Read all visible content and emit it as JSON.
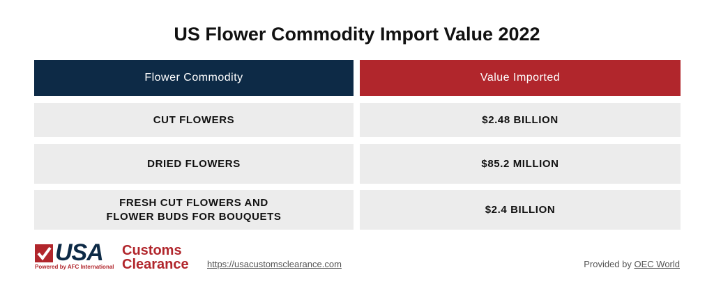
{
  "header": {
    "title": "US Flower Commodity Import Value 2022"
  },
  "table": {
    "columns": [
      "Flower Commodity",
      "Value Imported"
    ],
    "rows": [
      [
        "CUT FLOWERS",
        "$2.48 BILLION"
      ],
      [
        "DRIED FLOWERS",
        "$85.2 MILLION"
      ],
      [
        "FRESH CUT FLOWERS AND FLOWER BUDS FOR BOUQUETS",
        "$2.4 BILLION"
      ]
    ]
  },
  "footer": {
    "logo": {
      "usa": "USA",
      "customs": "Customs",
      "clearance": "Clearance",
      "powered_by": "Powered by AFC International"
    },
    "url": "https://usacustomsclearance.com",
    "provided_by": "Provided by",
    "source": "OEC World"
  }
}
